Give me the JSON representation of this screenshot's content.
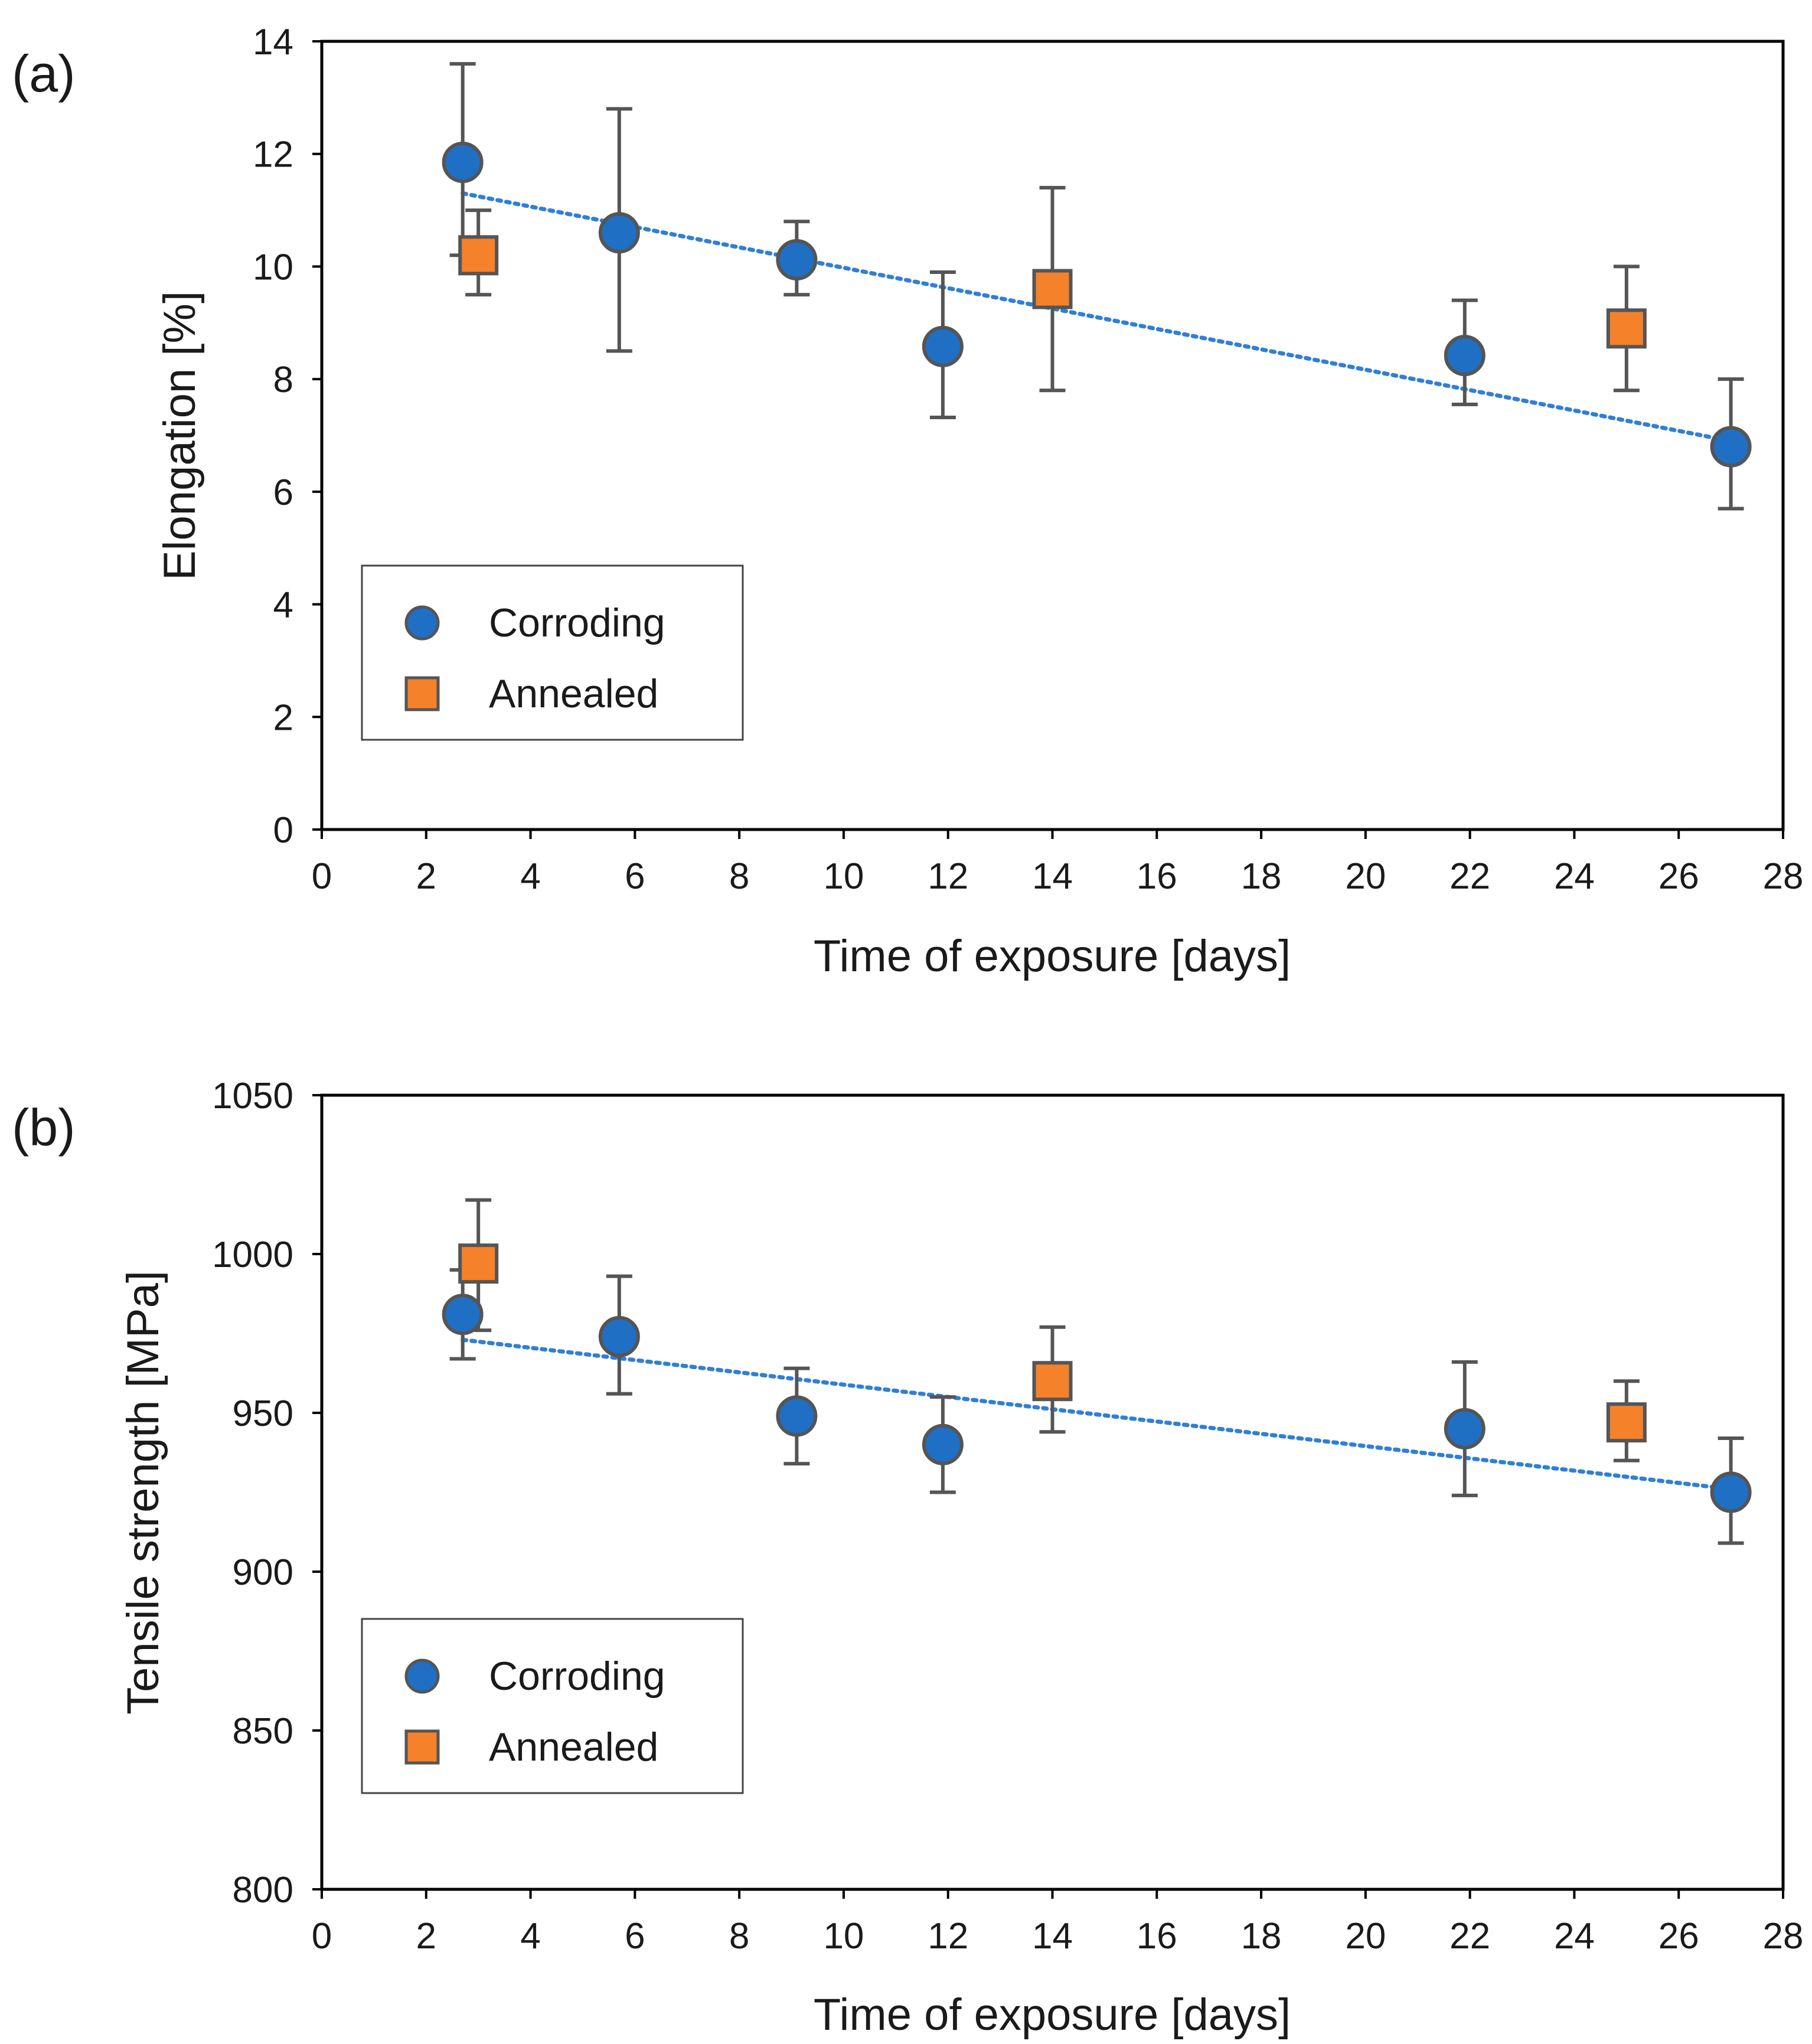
{
  "chart_data": [
    {
      "type": "scatter",
      "panel_label": "(a)",
      "xlabel": "Time of exposure  [days]",
      "ylabel": "Elongation [%]",
      "xlim": [
        0,
        28
      ],
      "ylim": [
        0,
        14
      ],
      "x_ticks": [
        0,
        2,
        4,
        6,
        8,
        10,
        12,
        14,
        16,
        18,
        20,
        22,
        24,
        26,
        28
      ],
      "y_ticks": [
        0,
        2,
        4,
        6,
        8,
        10,
        12,
        14
      ],
      "grid": false,
      "legend_position": "lower-left",
      "series": [
        {
          "name": "Corroding",
          "marker": "circle",
          "color": "#1f6fc5",
          "x": [
            2.7,
            5.7,
            9.1,
            11.9,
            21.9,
            27.0
          ],
          "y": [
            11.85,
            10.6,
            10.12,
            8.58,
            8.42,
            6.8
          ],
          "err_low": [
            1.65,
            2.1,
            0.62,
            1.26,
            0.87,
            1.1
          ],
          "err_high": [
            1.75,
            2.2,
            0.68,
            1.32,
            0.98,
            1.2
          ]
        },
        {
          "name": "Annealed",
          "marker": "square",
          "color": "#f5812a",
          "x": [
            3.0,
            14.0,
            25.0
          ],
          "y": [
            10.2,
            9.6,
            8.9
          ],
          "err_low": [
            0.7,
            1.8,
            1.1
          ],
          "err_high": [
            0.8,
            1.8,
            1.1
          ]
        }
      ],
      "trendline": {
        "series": "Corroding",
        "style": "dotted",
        "color": "#2f7fd6",
        "x": [
          2.7,
          27.0
        ],
        "y": [
          11.3,
          6.9
        ]
      }
    },
    {
      "type": "scatter",
      "panel_label": "(b)",
      "xlabel": "Time of exposure  [days]",
      "ylabel": "Tensile strength [MPa]",
      "xlim": [
        0,
        28
      ],
      "ylim": [
        800,
        1050
      ],
      "x_ticks": [
        0,
        2,
        4,
        6,
        8,
        10,
        12,
        14,
        16,
        18,
        20,
        22,
        24,
        26,
        28
      ],
      "y_ticks": [
        800,
        850,
        900,
        950,
        1000,
        1050
      ],
      "grid": false,
      "legend_position": "lower-left",
      "series": [
        {
          "name": "Corroding",
          "marker": "circle",
          "color": "#1f6fc5",
          "x": [
            2.7,
            5.7,
            9.1,
            11.9,
            21.9,
            27.0
          ],
          "y": [
            981,
            974,
            949,
            940,
            945,
            925
          ],
          "err_low": [
            14,
            18,
            15,
            15,
            21,
            16
          ],
          "err_high": [
            14,
            19,
            15,
            15,
            21,
            17
          ]
        },
        {
          "name": "Annealed",
          "marker": "square",
          "color": "#f5812a",
          "x": [
            3.0,
            14.0,
            25.0
          ],
          "y": [
            997,
            960,
            947
          ],
          "err_low": [
            21,
            16,
            12
          ],
          "err_high": [
            20,
            17,
            13
          ]
        }
      ],
      "trendline": {
        "series": "Corroding",
        "style": "dotted",
        "color": "#2f7fd6",
        "x": [
          2.7,
          27.0
        ],
        "y": [
          973,
          926
        ]
      }
    }
  ]
}
